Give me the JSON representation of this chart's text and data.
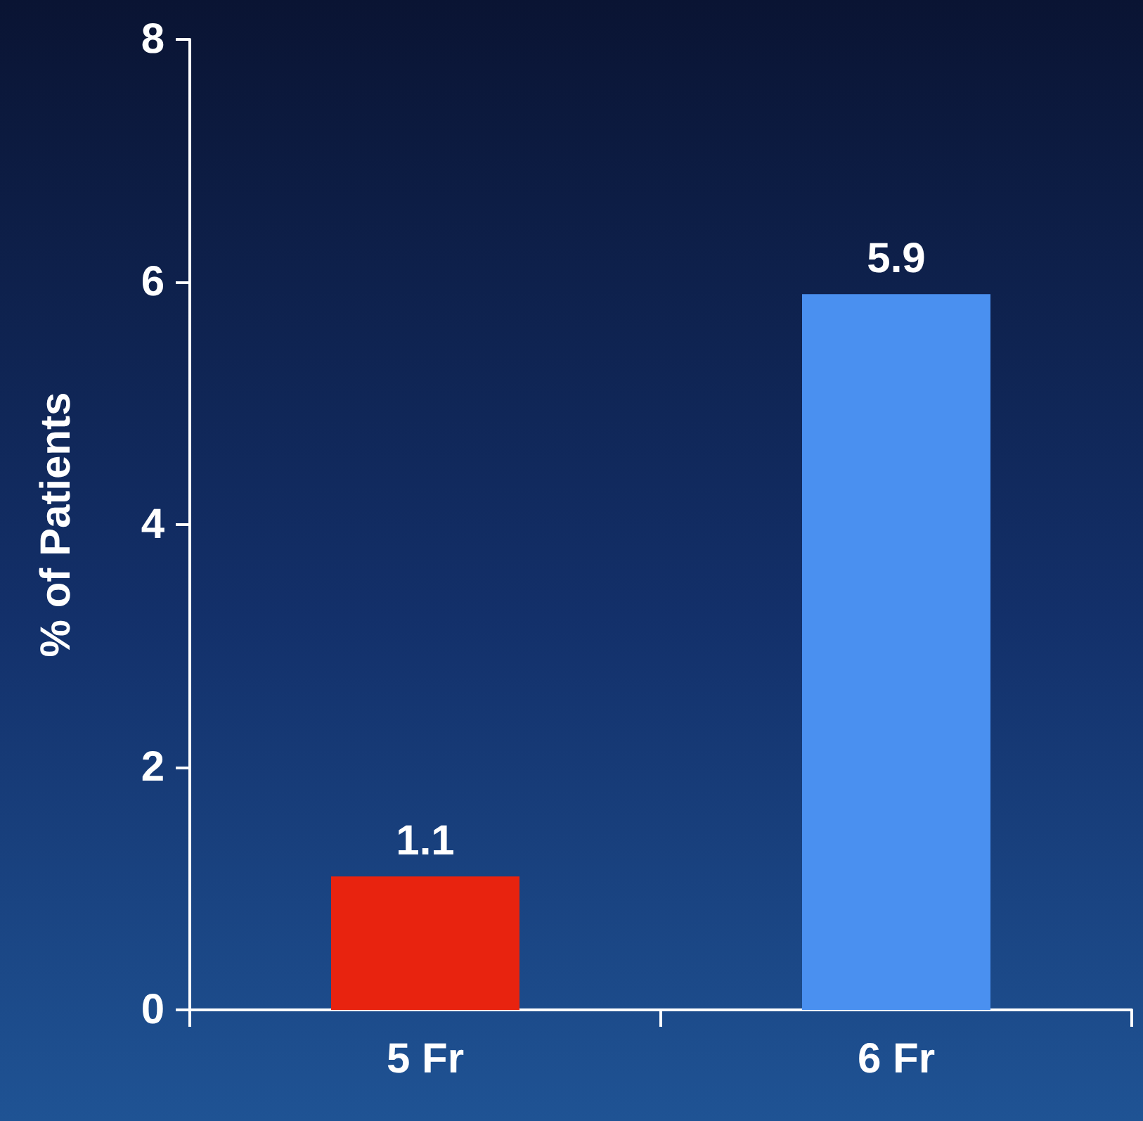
{
  "chart_data": {
    "type": "bar",
    "ylabel": "% of Patients",
    "categories": [
      "5 Fr",
      "6 Fr"
    ],
    "values": [
      1.1,
      5.9
    ],
    "colors": [
      "#e8230f",
      "#4a90f0"
    ],
    "ylim": [
      0,
      8
    ],
    "yticks": [
      0,
      2,
      4,
      6,
      8
    ],
    "grid": false,
    "data_labels": true
  }
}
